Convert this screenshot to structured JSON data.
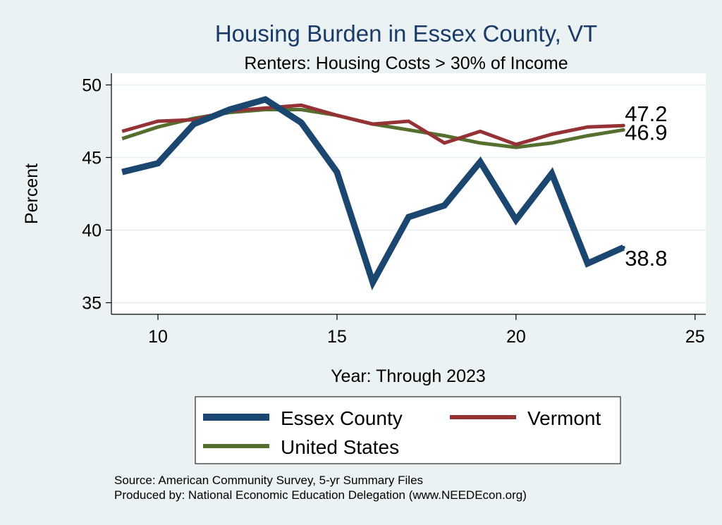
{
  "chart_data": {
    "type": "line",
    "title": "Housing Burden in Essex County, VT",
    "subtitle": "Renters: Housing Costs > 30% of Income",
    "xlabel": "Year: Through 2023",
    "ylabel": "Percent",
    "xlim": [
      8.7,
      25.3
    ],
    "ylim": [
      34.2,
      50.8
    ],
    "xticks": [
      10,
      15,
      20,
      25
    ],
    "yticks": [
      35,
      40,
      45,
      50
    ],
    "x": [
      9,
      10,
      11,
      12,
      13,
      14,
      15,
      16,
      17,
      18,
      19,
      20,
      21,
      22,
      23
    ],
    "series": [
      {
        "name": "Essex County",
        "color": "#1a4670",
        "width": 9,
        "values": [
          44.0,
          44.6,
          47.3,
          48.3,
          49.0,
          47.4,
          44.0,
          36.4,
          40.9,
          41.7,
          44.7,
          40.7,
          43.9,
          37.7,
          38.8
        ],
        "end_label": "38.8"
      },
      {
        "name": "Vermont",
        "color": "#943236",
        "width": 5,
        "values": [
          46.8,
          47.5,
          47.6,
          48.2,
          48.4,
          48.6,
          47.9,
          47.3,
          47.5,
          46.0,
          46.8,
          45.9,
          46.6,
          47.1,
          47.2
        ],
        "end_label": "47.2"
      },
      {
        "name": "United States",
        "color": "#556f2e",
        "width": 5,
        "values": [
          46.3,
          47.1,
          47.7,
          48.1,
          48.3,
          48.3,
          47.9,
          47.3,
          46.9,
          46.5,
          46.0,
          45.7,
          46.0,
          46.5,
          46.9
        ],
        "end_label": "46.9"
      }
    ],
    "grid": true,
    "legend": {
      "placement": "bottom",
      "columns": 2
    }
  },
  "source_lines": [
    "Source: American Community Survey, 5-yr Summary Files",
    "Produced by: National Economic Education Delegation (www.NEEDEcon.org)"
  ],
  "colors": {
    "background": "#eaf2f3",
    "plot_background": "#ffffff",
    "title": "#1a3a68",
    "grid": "#e6eef0"
  }
}
